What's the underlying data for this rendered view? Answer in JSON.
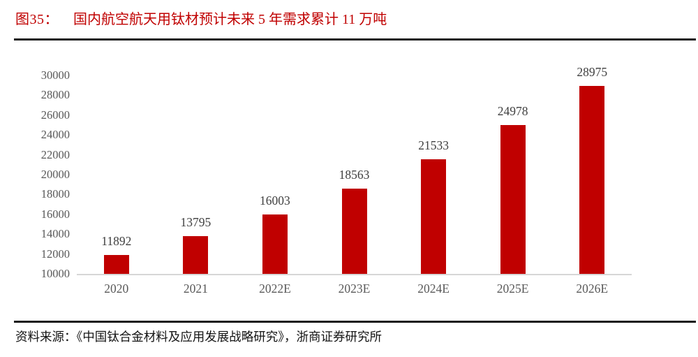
{
  "figure": {
    "label": "图35：",
    "title": "国内航空航天用钛材预计未来 5 年需求累计 11 万吨",
    "source": "资料来源：《中国钛合金材料及应用发展战略研究》，浙商证券研究所"
  },
  "colors": {
    "bar": "#C00000",
    "title": "#C00000",
    "axis_label": "#595959",
    "value_label": "#3F3F3F",
    "baseline": "#D6D6D6",
    "rule": "#1A1A1A"
  },
  "chart_data": {
    "type": "bar",
    "categories": [
      "2020",
      "2021",
      "2022E",
      "2023E",
      "2024E",
      "2025E",
      "2026E"
    ],
    "values": [
      11892,
      13795,
      16003,
      18563,
      21533,
      24978,
      28975
    ],
    "title": "国内航空航天用钛材预计未来 5 年需求累计 11 万吨",
    "xlabel": "",
    "ylabel": "",
    "ylim": [
      10000,
      30000
    ],
    "ytick_step": 2000,
    "yticks": [
      10000,
      12000,
      14000,
      16000,
      18000,
      20000,
      22000,
      24000,
      26000,
      28000,
      30000
    ],
    "grid": false,
    "data_labels": true,
    "legend": "none",
    "bar_color": "#C00000"
  }
}
